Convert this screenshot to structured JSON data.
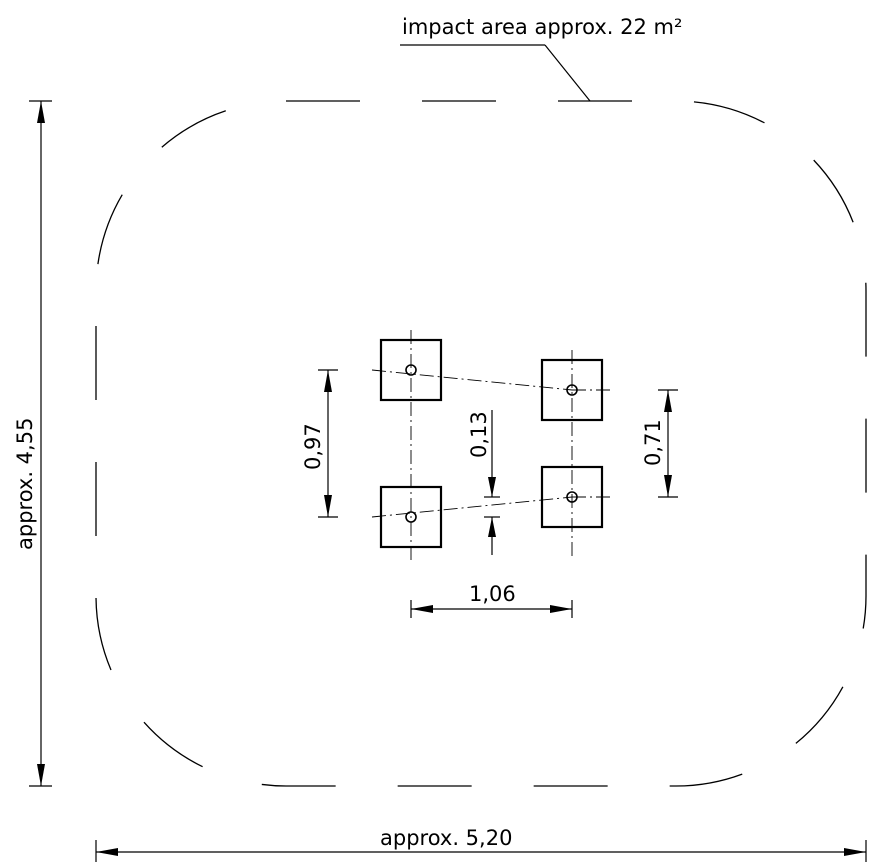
{
  "labels": {
    "impact_area": "impact area approx. 22 m²",
    "overall_width": "approx. 5,20",
    "overall_height": "approx. 4,55",
    "post_spacing_vertical_left": "0,97",
    "post_offset": "0,13",
    "post_spacing_vertical_right": "0,71",
    "post_spacing_horizontal": "1,06"
  }
}
